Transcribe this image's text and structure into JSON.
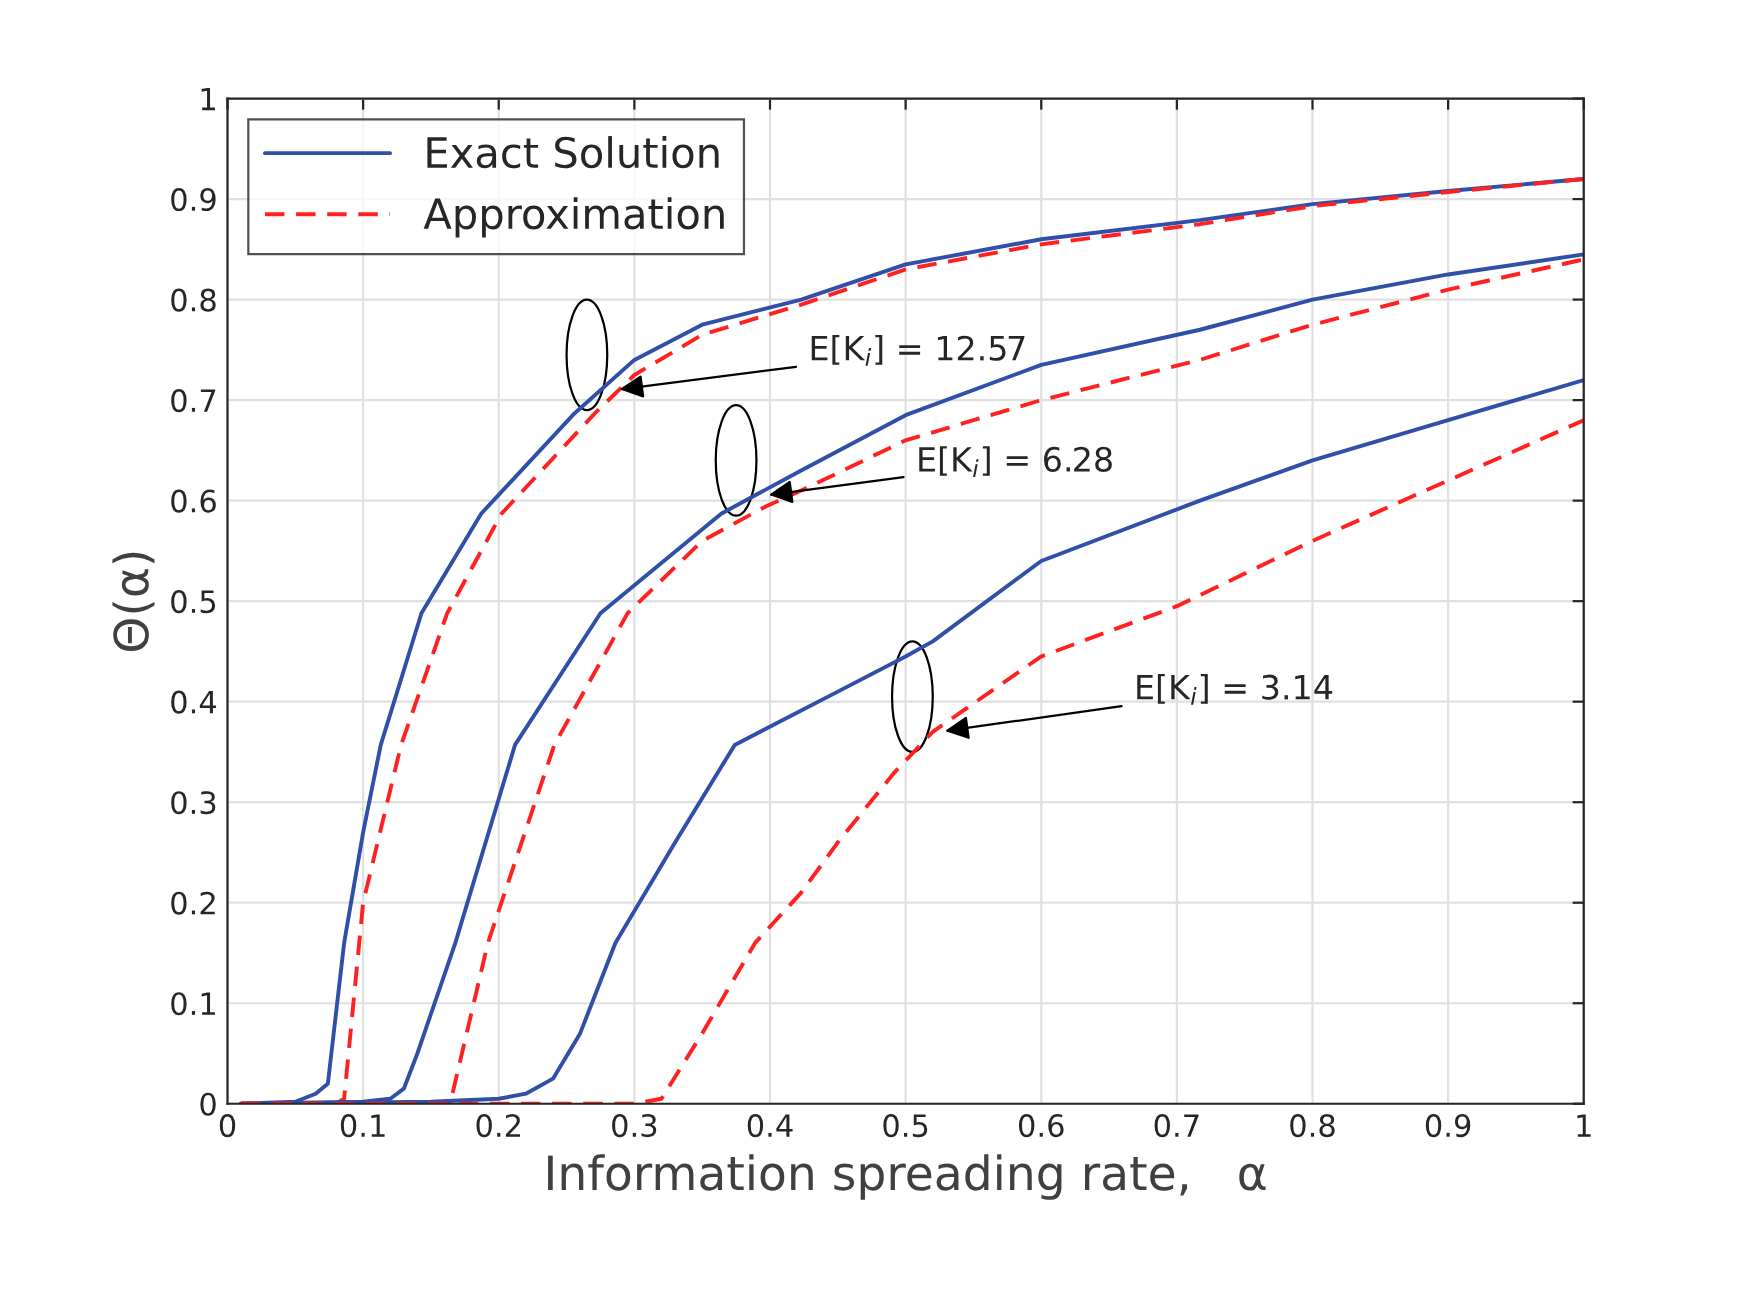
{
  "chart_data": {
    "type": "line",
    "xlabel": "Information spreading rate,   α",
    "ylabel": "Θ(α)",
    "xlim": [
      0,
      1
    ],
    "ylim": [
      0,
      1
    ],
    "xticks": [
      0,
      0.1,
      0.2,
      0.3,
      0.4,
      0.5,
      0.6,
      0.7,
      0.8,
      0.9,
      1
    ],
    "yticks": [
      0,
      0.1,
      0.2,
      0.3,
      0.4,
      0.5,
      0.6,
      0.7,
      0.8,
      0.9,
      1
    ],
    "grid": true,
    "legend": "top left",
    "marker": "none",
    "series": [
      {
        "name": "Exact Solution",
        "color": "#2f4fa8",
        "line_style": "solid",
        "x": [
          0.01,
          0.05,
          0.065,
          0.074,
          0.086,
          0.1,
          0.113,
          0.143,
          0.187,
          0.256,
          0.3,
          0.35,
          0.423,
          0.5,
          0.6,
          0.717,
          0.8,
          0.9,
          1.0
        ],
        "values": [
          0,
          0.002,
          0.01,
          0.02,
          0.16,
          0.27,
          0.357,
          0.488,
          0.587,
          0.687,
          0.74,
          0.775,
          0.8,
          0.835,
          0.86,
          0.879,
          0.895,
          0.908,
          0.92
        ]
      },
      {
        "name": "Approximation",
        "color": "#ff2020",
        "line_style": "dashed",
        "x": [
          0.01,
          0.08,
          0.086,
          0.1,
          0.128,
          0.162,
          0.202,
          0.271,
          0.3,
          0.35,
          0.423,
          0.5,
          0.6,
          0.717,
          0.8,
          0.9,
          1.0
        ],
        "values": [
          0,
          0,
          0.005,
          0.2,
          0.357,
          0.488,
          0.587,
          0.687,
          0.725,
          0.765,
          0.795,
          0.83,
          0.855,
          0.875,
          0.893,
          0.907,
          0.92
        ]
      },
      {
        "color": "#2f4fa8",
        "line_style": "solid",
        "x": [
          0.01,
          0.1,
          0.12,
          0.13,
          0.14,
          0.168,
          0.212,
          0.275,
          0.364,
          0.423,
          0.5,
          0.6,
          0.717,
          0.8,
          0.9,
          1.0
        ],
        "values": [
          0,
          0.002,
          0.005,
          0.015,
          0.05,
          0.16,
          0.357,
          0.488,
          0.587,
          0.63,
          0.685,
          0.735,
          0.77,
          0.8,
          0.825,
          0.845
        ]
      },
      {
        "color": "#ff2020",
        "line_style": "dashed",
        "x": [
          0.01,
          0.16,
          0.165,
          0.192,
          0.241,
          0.295,
          0.35,
          0.398,
          0.423,
          0.5,
          0.6,
          0.717,
          0.8,
          0.9,
          1.0
        ],
        "values": [
          0,
          0,
          0.005,
          0.16,
          0.357,
          0.488,
          0.56,
          0.595,
          0.61,
          0.66,
          0.7,
          0.74,
          0.775,
          0.81,
          0.84
        ]
      },
      {
        "color": "#2f4fa8",
        "line_style": "solid",
        "x": [
          0.01,
          0.15,
          0.2,
          0.22,
          0.24,
          0.26,
          0.286,
          0.33,
          0.374,
          0.45,
          0.5,
          0.52,
          0.6,
          0.717,
          0.8,
          0.9,
          1.0
        ],
        "values": [
          0,
          0.002,
          0.005,
          0.01,
          0.025,
          0.07,
          0.16,
          0.26,
          0.357,
          0.41,
          0.445,
          0.46,
          0.54,
          0.6,
          0.64,
          0.68,
          0.72
        ]
      },
      {
        "color": "#ff2020",
        "line_style": "dashed",
        "x": [
          0.01,
          0.3,
          0.32,
          0.35,
          0.389,
          0.423,
          0.45,
          0.492,
          0.52,
          0.6,
          0.7,
          0.8,
          0.9,
          1.0
        ],
        "values": [
          0,
          0,
          0.005,
          0.07,
          0.16,
          0.21,
          0.26,
          0.33,
          0.37,
          0.445,
          0.495,
          0.56,
          0.62,
          0.68
        ]
      }
    ],
    "annotations": [
      {
        "text": "E[K$_{i}$] = 12.57",
        "x": 0.285,
        "y": 0.71
      },
      {
        "text": "E[K$_{i}$] = 6.28",
        "x": 0.395,
        "y": 0.605
      },
      {
        "text": "E[K$_{i}$] = 3.14",
        "x": 0.525,
        "y": 0.37
      }
    ]
  }
}
